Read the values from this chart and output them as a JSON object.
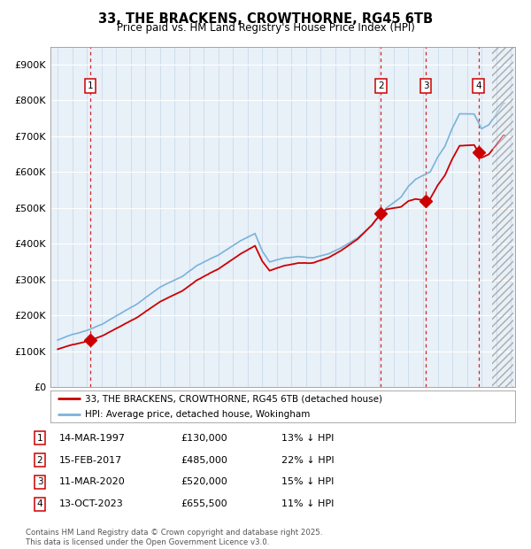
{
  "title": "33, THE BRACKENS, CROWTHORNE, RG45 6TB",
  "subtitle": "Price paid vs. HM Land Registry's House Price Index (HPI)",
  "sale_labels": [
    "1",
    "2",
    "3",
    "4"
  ],
  "sale_dates_decimal": [
    1997.21,
    2017.12,
    2020.19,
    2023.79
  ],
  "sale_prices": [
    130000,
    485000,
    520000,
    655500
  ],
  "hpi_color": "#7ab3d9",
  "price_color": "#cc0000",
  "vline_color": "#cc0000",
  "background_color": "#e8f0f8",
  "legend_label_price": "33, THE BRACKENS, CROWTHORNE, RG45 6TB (detached house)",
  "legend_label_hpi": "HPI: Average price, detached house, Wokingham",
  "footer": "Contains HM Land Registry data © Crown copyright and database right 2025.\nThis data is licensed under the Open Government Licence v3.0.",
  "ylim": [
    0,
    950000
  ],
  "yticks": [
    0,
    100000,
    200000,
    300000,
    400000,
    500000,
    600000,
    700000,
    800000,
    900000
  ],
  "table_rows": [
    [
      "1",
      "14-MAR-1997",
      "£130,000",
      "13% ↓ HPI"
    ],
    [
      "2",
      "15-FEB-2017",
      "£485,000",
      "22% ↓ HPI"
    ],
    [
      "3",
      "11-MAR-2020",
      "£520,000",
      "15% ↓ HPI"
    ],
    [
      "4",
      "13-OCT-2023",
      "£655,500",
      "11% ↓ HPI"
    ]
  ]
}
